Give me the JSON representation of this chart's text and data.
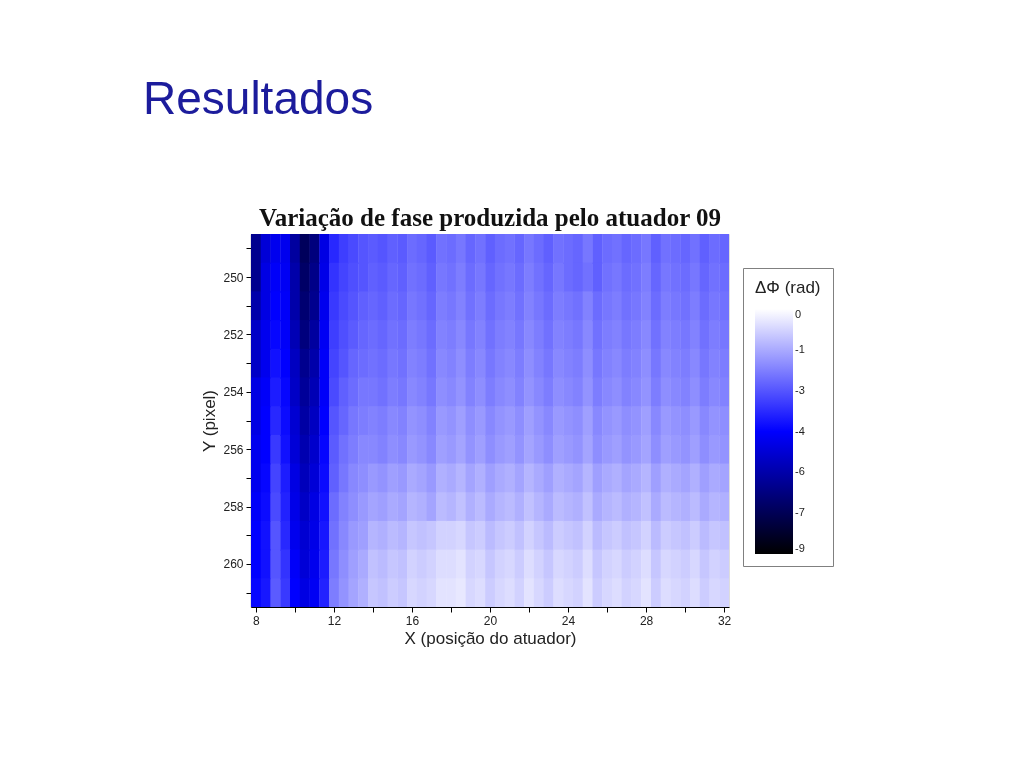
{
  "chart_data": {
    "type": "heatmap",
    "title": "Variação de fase produzida pelo atuador 09",
    "xlabel": "X (posição do atuador)",
    "ylabel": "Y (pixel)",
    "clabel": "ΔΦ (rad)",
    "annotations": [
      "Resultados"
    ],
    "categories": [
      "8",
      null,
      null,
      null,
      null,
      null,
      null,
      null,
      "12",
      null,
      null,
      null,
      null,
      null,
      null,
      null,
      "16",
      null,
      null,
      null,
      null,
      null,
      null,
      null,
      "20",
      null,
      null,
      null,
      null,
      null,
      null,
      null,
      "24",
      null,
      null,
      null,
      null,
      null,
      null,
      null,
      "28",
      null,
      null,
      null,
      null,
      null,
      null,
      null,
      "32"
    ],
    "y_categories": [
      null,
      "250",
      null,
      "252",
      null,
      "254",
      null,
      "256",
      null,
      "258",
      null,
      "260",
      null
    ],
    "cells": [
      [
        -6.5,
        -5.2,
        -4.8,
        -4.8,
        -6.2,
        -7.4,
        -6.8,
        -5.0,
        -3.8,
        -3.4,
        -3.2,
        -3.0,
        -2.9,
        -3.0,
        -2.8,
        -2.9,
        -2.6,
        -2.7,
        -2.9,
        -2.5,
        -2.6,
        -2.4,
        -2.7,
        -2.5,
        -2.8,
        -2.6,
        -2.5,
        -2.7,
        -2.4,
        -2.6,
        -2.8,
        -2.5,
        -2.6,
        -2.7,
        -2.4,
        -2.8,
        -2.6,
        -2.5,
        -2.7,
        -2.6,
        -2.4,
        -2.8,
        -2.5,
        -2.6,
        -2.7,
        -2.5,
        -2.8,
        -2.6,
        -2.7
      ],
      [
        -6.5,
        -5.0,
        -4.6,
        -4.7,
        -6.0,
        -7.2,
        -6.6,
        -4.9,
        -3.6,
        -3.3,
        -3.1,
        -3.0,
        -2.8,
        -2.9,
        -2.7,
        -2.8,
        -2.5,
        -2.6,
        -2.8,
        -2.4,
        -2.5,
        -2.3,
        -2.6,
        -2.4,
        -2.7,
        -2.5,
        -2.4,
        -2.6,
        -2.3,
        -2.5,
        -2.7,
        -2.4,
        -2.6,
        -2.7,
        -2.5,
        -2.8,
        -2.5,
        -2.4,
        -2.6,
        -2.5,
        -2.3,
        -2.7,
        -2.4,
        -2.5,
        -2.6,
        -2.4,
        -2.7,
        -2.5,
        -2.6
      ],
      [
        -6.0,
        -5.0,
        -4.5,
        -4.6,
        -6.0,
        -7.0,
        -6.5,
        -4.8,
        -3.5,
        -3.2,
        -3.0,
        -2.8,
        -2.7,
        -2.8,
        -2.6,
        -2.7,
        -2.4,
        -2.5,
        -2.7,
        -2.3,
        -2.4,
        -2.2,
        -2.5,
        -2.3,
        -2.6,
        -2.4,
        -2.3,
        -2.5,
        -2.2,
        -2.4,
        -2.6,
        -2.3,
        -2.4,
        -2.5,
        -2.2,
        -2.6,
        -2.4,
        -2.3,
        -2.5,
        -2.4,
        -2.2,
        -2.6,
        -2.3,
        -2.4,
        -2.5,
        -2.3,
        -2.6,
        -2.4,
        -2.5
      ],
      [
        -5.5,
        -4.8,
        -4.4,
        -4.6,
        -5.8,
        -6.8,
        -6.2,
        -4.7,
        -3.4,
        -3.1,
        -2.9,
        -2.7,
        -2.6,
        -2.7,
        -2.5,
        -2.6,
        -2.3,
        -2.4,
        -2.6,
        -2.2,
        -2.3,
        -2.1,
        -2.4,
        -2.2,
        -2.5,
        -2.3,
        -2.2,
        -2.4,
        -2.1,
        -2.3,
        -2.5,
        -2.2,
        -2.3,
        -2.4,
        -2.1,
        -2.5,
        -2.3,
        -2.2,
        -2.4,
        -2.3,
        -2.1,
        -2.5,
        -2.2,
        -2.3,
        -2.4,
        -2.2,
        -2.5,
        -2.3,
        -2.4
      ],
      [
        -5.5,
        -4.8,
        -4.2,
        -4.5,
        -5.6,
        -6.5,
        -6.0,
        -4.6,
        -3.3,
        -3.0,
        -2.7,
        -2.6,
        -2.5,
        -2.6,
        -2.4,
        -2.5,
        -2.2,
        -2.3,
        -2.5,
        -2.1,
        -2.2,
        -2.0,
        -2.3,
        -2.1,
        -2.4,
        -2.2,
        -2.1,
        -2.3,
        -2.0,
        -2.2,
        -2.4,
        -2.1,
        -2.2,
        -2.3,
        -2.0,
        -2.4,
        -2.2,
        -2.1,
        -2.3,
        -2.2,
        -2.0,
        -2.4,
        -2.1,
        -2.2,
        -2.3,
        -2.1,
        -2.4,
        -2.2,
        -2.3
      ],
      [
        -5.0,
        -4.6,
        -4.0,
        -4.4,
        -5.5,
        -6.3,
        -5.8,
        -4.6,
        -3.2,
        -2.8,
        -2.6,
        -2.4,
        -2.4,
        -2.5,
        -2.3,
        -2.4,
        -2.1,
        -2.2,
        -2.4,
        -2.0,
        -2.1,
        -1.9,
        -2.2,
        -2.0,
        -2.3,
        -2.1,
        -2.0,
        -2.2,
        -1.9,
        -2.1,
        -2.3,
        -2.0,
        -2.1,
        -2.2,
        -1.9,
        -2.3,
        -2.1,
        -2.0,
        -2.2,
        -2.1,
        -1.9,
        -2.3,
        -2.0,
        -2.1,
        -2.2,
        -2.0,
        -2.3,
        -2.1,
        -2.2
      ],
      [
        -5.0,
        -4.5,
        -3.8,
        -4.3,
        -5.3,
        -6.1,
        -5.6,
        -4.5,
        -3.0,
        -2.7,
        -2.4,
        -2.3,
        -2.2,
        -2.3,
        -2.1,
        -2.2,
        -1.9,
        -2.0,
        -2.2,
        -1.8,
        -1.9,
        -1.7,
        -2.0,
        -1.8,
        -2.1,
        -1.9,
        -1.8,
        -2.0,
        -1.7,
        -1.9,
        -2.1,
        -1.8,
        -1.9,
        -2.0,
        -1.7,
        -2.1,
        -1.9,
        -1.8,
        -2.0,
        -1.9,
        -1.7,
        -2.1,
        -1.8,
        -1.9,
        -2.0,
        -1.8,
        -2.1,
        -1.9,
        -2.0
      ],
      [
        -4.8,
        -4.5,
        -3.5,
        -4.2,
        -5.2,
        -5.9,
        -5.4,
        -4.4,
        -2.9,
        -2.5,
        -2.3,
        -2.1,
        -2.1,
        -2.2,
        -2.0,
        -2.1,
        -1.8,
        -1.9,
        -2.1,
        -1.7,
        -1.8,
        -1.6,
        -1.9,
        -1.7,
        -2.0,
        -1.8,
        -1.7,
        -1.9,
        -1.6,
        -1.8,
        -2.0,
        -1.7,
        -1.8,
        -1.9,
        -1.6,
        -2.0,
        -1.8,
        -1.7,
        -1.9,
        -1.8,
        -1.6,
        -2.0,
        -1.7,
        -1.8,
        -1.9,
        -1.7,
        -2.0,
        -1.8,
        -1.9
      ],
      [
        -4.8,
        -4.4,
        -3.3,
        -4.0,
        -5.0,
        -5.7,
        -5.2,
        -4.3,
        -2.8,
        -2.4,
        -2.1,
        -2.0,
        -1.8,
        -1.9,
        -1.7,
        -1.8,
        -1.5,
        -1.6,
        -1.8,
        -1.4,
        -1.5,
        -1.3,
        -1.6,
        -1.4,
        -1.7,
        -1.5,
        -1.4,
        -1.6,
        -1.3,
        -1.5,
        -1.7,
        -1.4,
        -1.5,
        -1.6,
        -1.3,
        -1.7,
        -1.5,
        -1.4,
        -1.6,
        -1.5,
        -1.3,
        -1.7,
        -1.4,
        -1.5,
        -1.6,
        -1.4,
        -1.7,
        -1.5,
        -1.6
      ],
      [
        -4.6,
        -4.3,
        -3.2,
        -3.9,
        -4.9,
        -5.5,
        -5.0,
        -4.2,
        -2.6,
        -2.2,
        -2.0,
        -1.8,
        -1.6,
        -1.7,
        -1.5,
        -1.6,
        -1.3,
        -1.4,
        -1.6,
        -1.2,
        -1.3,
        -1.1,
        -1.4,
        -1.2,
        -1.5,
        -1.3,
        -1.2,
        -1.4,
        -1.1,
        -1.3,
        -1.5,
        -1.2,
        -1.3,
        -1.4,
        -1.1,
        -1.5,
        -1.3,
        -1.2,
        -1.4,
        -1.3,
        -1.1,
        -1.5,
        -1.2,
        -1.3,
        -1.4,
        -1.2,
        -1.5,
        -1.3,
        -1.4
      ],
      [
        -4.5,
        -4.2,
        -3.0,
        -3.8,
        -4.8,
        -5.3,
        -4.9,
        -4.1,
        -2.5,
        -2.1,
        -1.8,
        -1.7,
        -1.3,
        -1.4,
        -1.2,
        -1.3,
        -1.0,
        -1.1,
        -1.0,
        -0.8,
        -0.8,
        -0.7,
        -1.0,
        -0.9,
        -1.2,
        -1.0,
        -0.9,
        -1.1,
        -0.8,
        -1.0,
        -1.2,
        -0.9,
        -1.0,
        -1.1,
        -0.8,
        -1.2,
        -1.0,
        -0.9,
        -1.1,
        -1.0,
        -0.8,
        -1.2,
        -0.9,
        -1.0,
        -1.1,
        -0.9,
        -1.2,
        -1.0,
        -1.1
      ],
      [
        -4.5,
        -4.2,
        -3.0,
        -3.6,
        -4.6,
        -5.2,
        -4.8,
        -4.0,
        -2.4,
        -2.0,
        -1.7,
        -1.5,
        -1.1,
        -1.2,
        -1.0,
        -1.1,
        -0.8,
        -0.9,
        -0.8,
        -0.6,
        -0.6,
        -0.5,
        -0.8,
        -0.7,
        -1.0,
        -0.8,
        -0.7,
        -0.9,
        -0.6,
        -0.8,
        -1.0,
        -0.7,
        -0.8,
        -0.9,
        -0.6,
        -1.0,
        -0.8,
        -0.7,
        -0.9,
        -0.8,
        -0.6,
        -1.0,
        -0.7,
        -0.8,
        -0.9,
        -0.7,
        -1.0,
        -0.8,
        -0.9
      ],
      [
        -4.4,
        -4.1,
        -2.9,
        -3.5,
        -4.5,
        -5.0,
        -4.7,
        -3.9,
        -2.3,
        -1.9,
        -1.6,
        -1.4,
        -1.0,
        -1.1,
        -0.9,
        -1.0,
        -0.7,
        -0.8,
        -0.7,
        -0.5,
        -0.5,
        -0.4,
        -0.7,
        -0.6,
        -0.9,
        -0.7,
        -0.6,
        -0.8,
        -0.5,
        -0.7,
        -0.9,
        -0.6,
        -0.7,
        -0.8,
        -0.5,
        -0.9,
        -0.7,
        -0.6,
        -0.8,
        -0.7,
        -0.5,
        -0.9,
        -0.6,
        -0.7,
        -0.8,
        -0.6,
        -0.9,
        -0.7,
        -0.8
      ]
    ],
    "clim": [
      -9,
      0
    ],
    "cticks": [
      0,
      {
        "value": -1.5,
        "label": "-1"
      },
      -3,
      {
        "value": -4.5,
        "label": "-4"
      },
      -6,
      {
        "value": -7.5,
        "label": "-7"
      },
      -9
    ]
  }
}
